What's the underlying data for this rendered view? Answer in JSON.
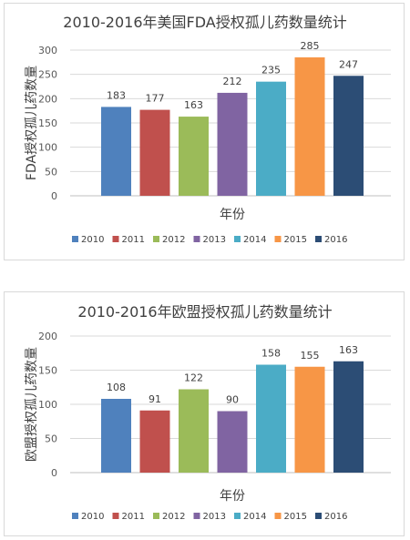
{
  "chart_data": [
    {
      "type": "bar",
      "title": "2010-2016年美国FDA授权孤儿药数量统计",
      "xlabel": "年份",
      "ylabel": "FDA授权孤儿药数量",
      "ylim": [
        0,
        300
      ],
      "yticks": [
        0,
        50,
        100,
        150,
        200,
        250,
        300
      ],
      "categories": [
        "2010",
        "2011",
        "2012",
        "2013",
        "2014",
        "2015",
        "2016"
      ],
      "values": [
        183,
        177,
        163,
        212,
        235,
        285,
        247
      ],
      "colors": [
        "#4F81BD",
        "#C0504D",
        "#9BBB59",
        "#8064A2",
        "#4BACC6",
        "#F79646",
        "#2C4D75"
      ],
      "legend": "bottom",
      "grid": true
    },
    {
      "type": "bar",
      "title": "2010-2016年欧盟授权孤儿药数量统计",
      "xlabel": "年份",
      "ylabel": "欧盟授权孤儿药数量",
      "ylim": [
        0,
        200
      ],
      "yticks": [
        0,
        50,
        100,
        150,
        200
      ],
      "categories": [
        "2010",
        "2011",
        "2012",
        "2013",
        "2014",
        "2015",
        "2016"
      ],
      "values": [
        108,
        91,
        122,
        90,
        158,
        155,
        163
      ],
      "colors": [
        "#4F81BD",
        "#C0504D",
        "#9BBB59",
        "#8064A2",
        "#4BACC6",
        "#F79646",
        "#2C4D75"
      ],
      "legend": "bottom",
      "grid": true
    }
  ]
}
